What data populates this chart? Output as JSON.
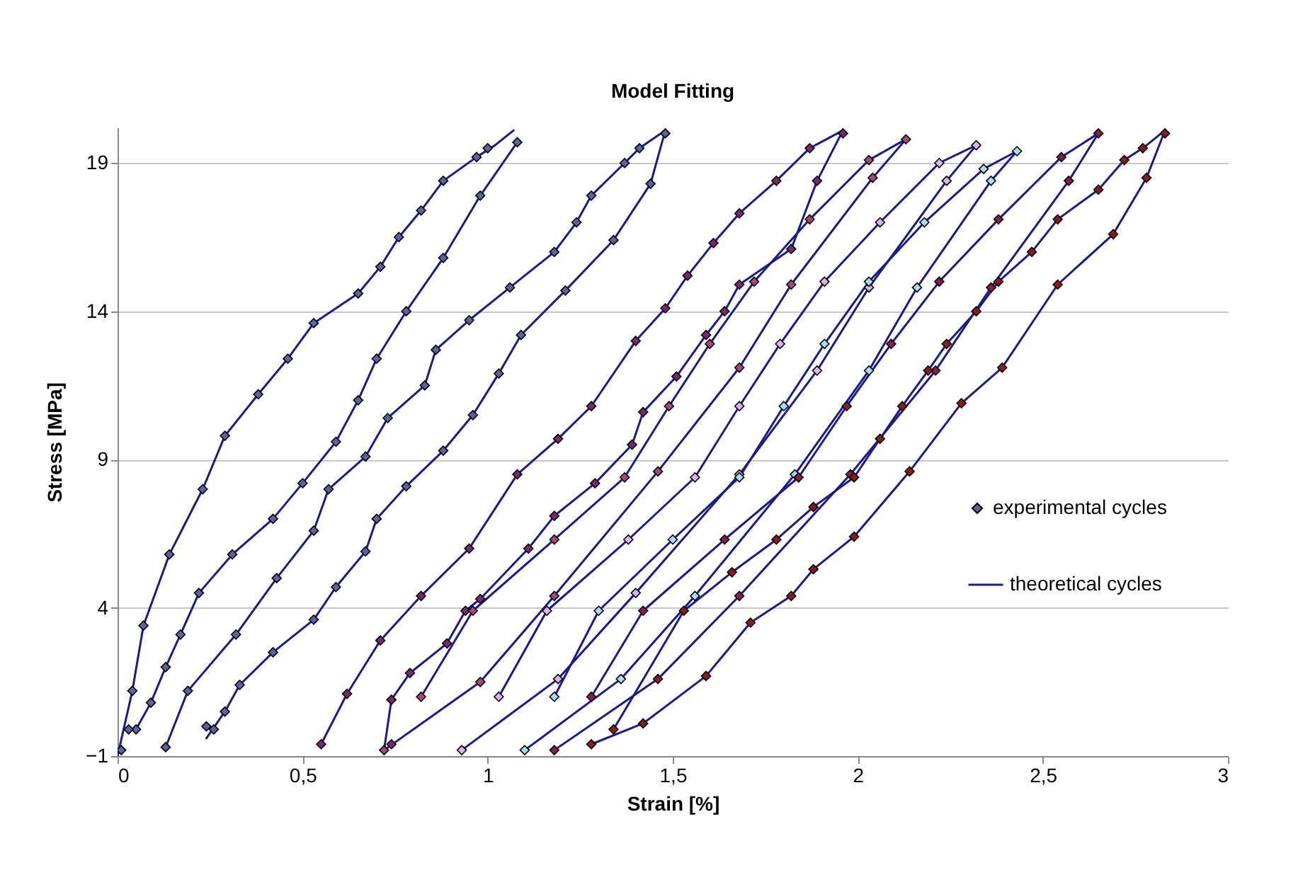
{
  "chart_data": {
    "type": "scatter",
    "title": "Model Fitting",
    "xlabel": "Strain [%]",
    "ylabel": "Stress [MPa]",
    "xlim": [
      0,
      3
    ],
    "ylim": [
      -1,
      20.2
    ],
    "xticks": [
      {
        "value": 0,
        "label": "0"
      },
      {
        "value": 0.5,
        "label": "0,5"
      },
      {
        "value": 1,
        "label": "1"
      },
      {
        "value": 1.5,
        "label": "1,5"
      },
      {
        "value": 2,
        "label": "2"
      },
      {
        "value": 2.5,
        "label": "2,5"
      },
      {
        "value": 3,
        "label": "3"
      }
    ],
    "yticks": [
      -1,
      4,
      9,
      14,
      19
    ],
    "grid": "y",
    "legend": "right",
    "series": [
      {
        "name": "experimental cycles",
        "marker": "diamond",
        "color": "#5b62a0",
        "x": [
          0.01,
          0.04,
          0.07,
          0.14,
          0.23,
          0.29,
          0.38,
          0.46,
          0.53,
          0.65,
          0.71,
          0.76,
          0.82,
          0.88,
          0.97,
          1.0,
          1.08,
          0.98,
          0.88,
          0.78,
          0.7,
          0.65,
          0.59,
          0.5,
          0.42,
          0.31,
          0.22,
          0.17,
          0.13,
          0.09,
          0.05,
          0.03
        ],
        "values": [
          -0.8,
          1.2,
          3.4,
          5.8,
          8.0,
          9.8,
          11.2,
          12.4,
          13.6,
          14.6,
          15.5,
          16.5,
          17.4,
          18.4,
          19.2,
          19.5,
          19.7,
          17.9,
          15.8,
          14.0,
          12.4,
          11.0,
          9.6,
          8.2,
          7.0,
          5.8,
          4.5,
          3.1,
          2.0,
          0.8,
          -0.1,
          -0.1
        ]
      },
      {
        "marker": "diamond",
        "color": "#5b62a0",
        "x": [
          0.13,
          0.19,
          0.32,
          0.43,
          0.53,
          0.57,
          0.67,
          0.73,
          0.83,
          0.86,
          0.95,
          1.06,
          1.18,
          1.24,
          1.28,
          1.37,
          1.41,
          1.48,
          1.44,
          1.34,
          1.21,
          1.09,
          1.03,
          0.96,
          0.88,
          0.78,
          0.7,
          0.67,
          0.59,
          0.53,
          0.42,
          0.33,
          0.29,
          0.26,
          0.24
        ],
        "values": [
          -0.7,
          1.2,
          3.1,
          5.0,
          6.6,
          8.0,
          9.1,
          10.4,
          11.5,
          12.7,
          13.7,
          14.8,
          16.0,
          17.0,
          17.9,
          19.0,
          19.5,
          20.0,
          18.3,
          16.4,
          14.7,
          13.2,
          11.9,
          10.5,
          9.3,
          8.1,
          7.0,
          5.9,
          4.7,
          3.6,
          2.5,
          1.4,
          0.5,
          -0.1,
          0.0
        ]
      },
      {
        "marker": "diamond",
        "color": "#7b2670",
        "x": [
          0.55,
          0.62,
          0.71,
          0.82,
          0.95,
          1.08,
          1.19,
          1.28,
          1.4,
          1.48,
          1.54,
          1.61,
          1.68,
          1.78,
          1.87,
          1.96,
          1.89,
          1.82,
          1.68,
          1.64,
          1.59,
          1.51,
          1.42,
          1.39,
          1.29,
          1.18,
          1.11,
          0.98,
          0.94,
          0.89,
          0.79,
          0.74,
          0.74
        ],
        "values": [
          -0.6,
          1.1,
          2.9,
          4.4,
          6.0,
          8.5,
          9.7,
          10.8,
          13.0,
          14.1,
          15.2,
          16.3,
          17.3,
          18.4,
          19.5,
          20.0,
          18.4,
          16.1,
          14.9,
          14.0,
          13.2,
          11.8,
          10.6,
          9.5,
          8.2,
          7.1,
          6.0,
          4.3,
          3.9,
          2.8,
          1.8,
          0.9,
          -0.6
        ]
      },
      {
        "marker": "diamond",
        "color": "#a14a78",
        "x": [
          0.72,
          0.98,
          1.18,
          1.46,
          1.68,
          1.82,
          2.04,
          2.13,
          2.03,
          1.87,
          1.72,
          1.6,
          1.49,
          1.37,
          1.18,
          0.96,
          0.82
        ],
        "values": [
          -0.8,
          1.5,
          4.4,
          8.6,
          12.1,
          14.9,
          18.5,
          19.8,
          19.1,
          17.1,
          15.0,
          12.9,
          10.8,
          8.4,
          6.3,
          3.9,
          1.0
        ]
      },
      {
        "marker": "diamond",
        "color": "#d9b3f0",
        "x": [
          0.93,
          1.19,
          1.4,
          1.68,
          1.89,
          2.03,
          2.24,
          2.32,
          2.22,
          2.06,
          1.91,
          1.79,
          1.68,
          1.56,
          1.38,
          1.16,
          1.03
        ],
        "values": [
          -0.8,
          1.6,
          4.5,
          8.5,
          12.0,
          14.8,
          18.4,
          19.6,
          19.0,
          17.0,
          15.0,
          12.9,
          10.8,
          8.4,
          6.3,
          3.9,
          1.0
        ]
      },
      {
        "marker": "diamond",
        "color": "#a8dcf0",
        "x": [
          1.1,
          1.36,
          1.56,
          1.83,
          2.03,
          2.16,
          2.36,
          2.43,
          2.34,
          2.18,
          2.03,
          1.91,
          1.8,
          1.68,
          1.5,
          1.3,
          1.18
        ],
        "values": [
          -0.8,
          1.6,
          4.4,
          8.5,
          12.0,
          14.8,
          18.4,
          19.4,
          18.8,
          17.0,
          15.0,
          12.9,
          10.8,
          8.4,
          6.3,
          3.9,
          1.0
        ]
      },
      {
        "marker": "diamond",
        "color": "#8a1a4a",
        "x": [
          1.18,
          1.46,
          1.68,
          1.98,
          2.21,
          2.36,
          2.57,
          2.65,
          2.55,
          2.38,
          2.22,
          2.09,
          1.97,
          1.84,
          1.64,
          1.42,
          1.28
        ],
        "values": [
          -0.8,
          1.6,
          4.4,
          8.5,
          12.0,
          14.8,
          18.4,
          20.0,
          19.2,
          17.1,
          15.0,
          12.9,
          10.8,
          8.4,
          6.3,
          3.9,
          1.0
        ]
      },
      {
        "marker": "diamond",
        "color": "#8b1a1a",
        "x": [
          1.28,
          1.34,
          1.42,
          1.59,
          1.71,
          1.82,
          1.88,
          1.99,
          2.14,
          2.28,
          2.39,
          2.54,
          2.69,
          2.78,
          2.83,
          2.77,
          2.72,
          2.65,
          2.54,
          2.47,
          2.38,
          2.32,
          2.24,
          2.19,
          2.12,
          2.06,
          1.99,
          1.88,
          1.78,
          1.66,
          1.53
        ],
        "values": [
          -0.6,
          -0.1,
          0.1,
          1.7,
          3.5,
          4.4,
          5.3,
          6.4,
          8.6,
          10.9,
          12.1,
          14.9,
          16.6,
          18.5,
          20.0,
          19.5,
          19.1,
          18.1,
          17.1,
          16.0,
          15.0,
          14.0,
          12.9,
          12.0,
          10.8,
          9.7,
          8.4,
          7.4,
          6.3,
          5.2,
          3.9
        ]
      },
      {
        "type": "line",
        "name": "theoretical cycles",
        "marker": "none",
        "color": "#1a1a8c",
        "x": [
          0.0,
          0.04,
          0.07,
          0.14,
          0.23,
          0.29,
          0.38,
          0.46,
          0.53,
          0.65,
          0.71,
          0.76,
          0.82,
          0.88,
          0.97,
          1.02,
          1.07
        ],
        "values": [
          -1.0,
          1.2,
          3.4,
          5.8,
          8.0,
          9.8,
          11.2,
          12.4,
          13.6,
          14.6,
          15.5,
          16.5,
          17.4,
          18.4,
          19.2,
          19.6,
          20.1
        ]
      },
      {
        "type": "line",
        "marker": "none",
        "color": "#1a1a8c",
        "x": [
          0.05,
          0.09,
          0.13,
          0.17,
          0.22,
          0.31,
          0.42,
          0.5,
          0.59,
          0.65,
          0.7,
          0.78,
          0.88,
          0.98,
          1.08
        ],
        "values": [
          -0.1,
          0.8,
          2.0,
          3.1,
          4.5,
          5.8,
          7.0,
          8.2,
          9.6,
          11.0,
          12.4,
          14.0,
          15.8,
          17.9,
          19.7
        ]
      },
      {
        "type": "line",
        "marker": "none",
        "color": "#1a1a8c",
        "x": [
          0.13,
          0.19,
          0.32,
          0.43,
          0.53,
          0.57,
          0.67,
          0.73,
          0.83,
          0.86,
          0.95,
          1.06,
          1.18,
          1.24,
          1.28,
          1.37,
          1.41,
          1.48
        ],
        "values": [
          -0.7,
          1.2,
          3.1,
          5.0,
          6.6,
          8.0,
          9.1,
          10.4,
          11.5,
          12.7,
          13.7,
          14.8,
          16.0,
          17.0,
          17.9,
          19.0,
          19.5,
          20.1
        ]
      },
      {
        "type": "line",
        "marker": "none",
        "color": "#1a1a8c",
        "x": [
          0.24,
          0.29,
          0.33,
          0.42,
          0.53,
          0.59,
          0.67,
          0.7,
          0.78,
          0.88,
          0.96,
          1.03,
          1.09,
          1.21,
          1.34,
          1.44,
          1.48
        ],
        "values": [
          -0.4,
          0.5,
          1.4,
          2.5,
          3.6,
          4.7,
          5.9,
          7.0,
          8.1,
          9.3,
          10.5,
          11.9,
          13.2,
          14.7,
          16.4,
          18.3,
          20.1
        ]
      },
      {
        "type": "line",
        "marker": "none",
        "color": "#1a1a8c",
        "x": [
          0.55,
          0.62,
          0.71,
          0.82,
          0.95,
          1.08,
          1.19,
          1.28,
          1.4,
          1.48,
          1.54,
          1.61,
          1.68,
          1.78,
          1.87,
          1.96
        ],
        "values": [
          -0.6,
          1.1,
          2.9,
          4.4,
          6.0,
          8.5,
          9.7,
          10.8,
          13.0,
          14.1,
          15.2,
          16.3,
          17.3,
          18.4,
          19.5,
          20.1
        ]
      },
      {
        "type": "line",
        "marker": "none",
        "color": "#1a1a8c",
        "x": [
          0.72,
          0.74,
          0.79,
          0.89,
          0.94,
          0.98,
          1.11,
          1.18,
          1.29,
          1.39,
          1.42,
          1.51,
          1.59,
          1.64,
          1.68,
          1.82,
          1.89,
          1.96
        ],
        "values": [
          -0.8,
          0.9,
          1.8,
          2.8,
          3.9,
          4.3,
          6.0,
          7.1,
          8.2,
          9.5,
          10.6,
          11.8,
          13.2,
          14.0,
          14.9,
          16.1,
          18.4,
          20.1
        ]
      },
      {
        "type": "line",
        "marker": "none",
        "color": "#1a1a8c",
        "x": [
          0.72,
          0.98,
          1.18,
          1.46,
          1.68,
          1.82,
          2.04,
          2.13
        ],
        "values": [
          -0.8,
          1.5,
          4.4,
          8.6,
          12.1,
          14.9,
          18.5,
          19.8
        ]
      },
      {
        "type": "line",
        "marker": "none",
        "color": "#1a1a8c",
        "x": [
          0.82,
          0.96,
          1.18,
          1.37,
          1.49,
          1.6,
          1.72,
          1.87,
          2.03,
          2.13
        ],
        "values": [
          1.0,
          3.9,
          6.3,
          8.4,
          10.8,
          12.9,
          15.0,
          17.1,
          19.1,
          19.8
        ]
      },
      {
        "type": "line",
        "marker": "none",
        "color": "#1a1a8c",
        "x": [
          0.93,
          1.19,
          1.4,
          1.68,
          1.89,
          2.03,
          2.24,
          2.32
        ],
        "values": [
          -0.8,
          1.6,
          4.5,
          8.5,
          12.0,
          14.8,
          18.4,
          19.6
        ]
      },
      {
        "type": "line",
        "marker": "none",
        "color": "#1a1a8c",
        "x": [
          1.03,
          1.16,
          1.38,
          1.56,
          1.68,
          1.79,
          1.91,
          2.06,
          2.22,
          2.32
        ],
        "values": [
          1.0,
          3.9,
          6.3,
          8.4,
          10.8,
          12.9,
          15.0,
          17.0,
          19.0,
          19.6
        ]
      },
      {
        "type": "line",
        "marker": "none",
        "color": "#1a1a8c",
        "x": [
          1.1,
          1.36,
          1.56,
          1.83,
          2.03,
          2.16,
          2.36,
          2.43
        ],
        "values": [
          -0.8,
          1.6,
          4.4,
          8.5,
          12.0,
          14.8,
          18.4,
          19.4
        ]
      },
      {
        "type": "line",
        "marker": "none",
        "color": "#1a1a8c",
        "x": [
          1.18,
          1.3,
          1.5,
          1.68,
          1.8,
          1.91,
          2.03,
          2.18,
          2.34,
          2.43
        ],
        "values": [
          1.0,
          3.9,
          6.3,
          8.4,
          10.8,
          12.9,
          15.0,
          17.0,
          18.8,
          19.4
        ]
      },
      {
        "type": "line",
        "marker": "none",
        "color": "#1a1a8c",
        "x": [
          1.18,
          1.46,
          1.68,
          1.98,
          2.21,
          2.36,
          2.57,
          2.65
        ],
        "values": [
          -0.8,
          1.6,
          4.4,
          8.5,
          12.0,
          14.8,
          18.4,
          20.0
        ]
      },
      {
        "type": "line",
        "marker": "none",
        "color": "#1a1a8c",
        "x": [
          1.28,
          1.42,
          1.64,
          1.84,
          1.97,
          2.09,
          2.22,
          2.38,
          2.55,
          2.65
        ],
        "values": [
          1.0,
          3.9,
          6.3,
          8.4,
          10.8,
          12.9,
          15.0,
          17.1,
          19.2,
          20.0
        ]
      },
      {
        "type": "line",
        "marker": "none",
        "color": "#1a1a8c",
        "x": [
          1.28,
          1.42,
          1.59,
          1.71,
          1.82,
          1.88,
          1.99,
          2.14,
          2.28,
          2.39,
          2.54,
          2.69,
          2.78,
          2.83
        ],
        "values": [
          -0.6,
          0.1,
          1.7,
          3.5,
          4.4,
          5.3,
          6.4,
          8.6,
          10.9,
          12.1,
          14.9,
          16.6,
          18.5,
          20.1
        ]
      },
      {
        "type": "line",
        "marker": "none",
        "color": "#1a1a8c",
        "x": [
          1.34,
          1.53,
          1.66,
          1.78,
          1.88,
          1.99,
          2.06,
          2.12,
          2.19,
          2.24,
          2.32,
          2.38,
          2.47,
          2.54,
          2.65,
          2.72,
          2.77,
          2.83
        ],
        "values": [
          -0.1,
          3.9,
          5.2,
          6.3,
          7.4,
          8.4,
          9.7,
          10.8,
          12.0,
          12.9,
          14.0,
          15.0,
          16.0,
          17.1,
          18.1,
          19.1,
          19.5,
          20.1
        ]
      }
    ]
  }
}
